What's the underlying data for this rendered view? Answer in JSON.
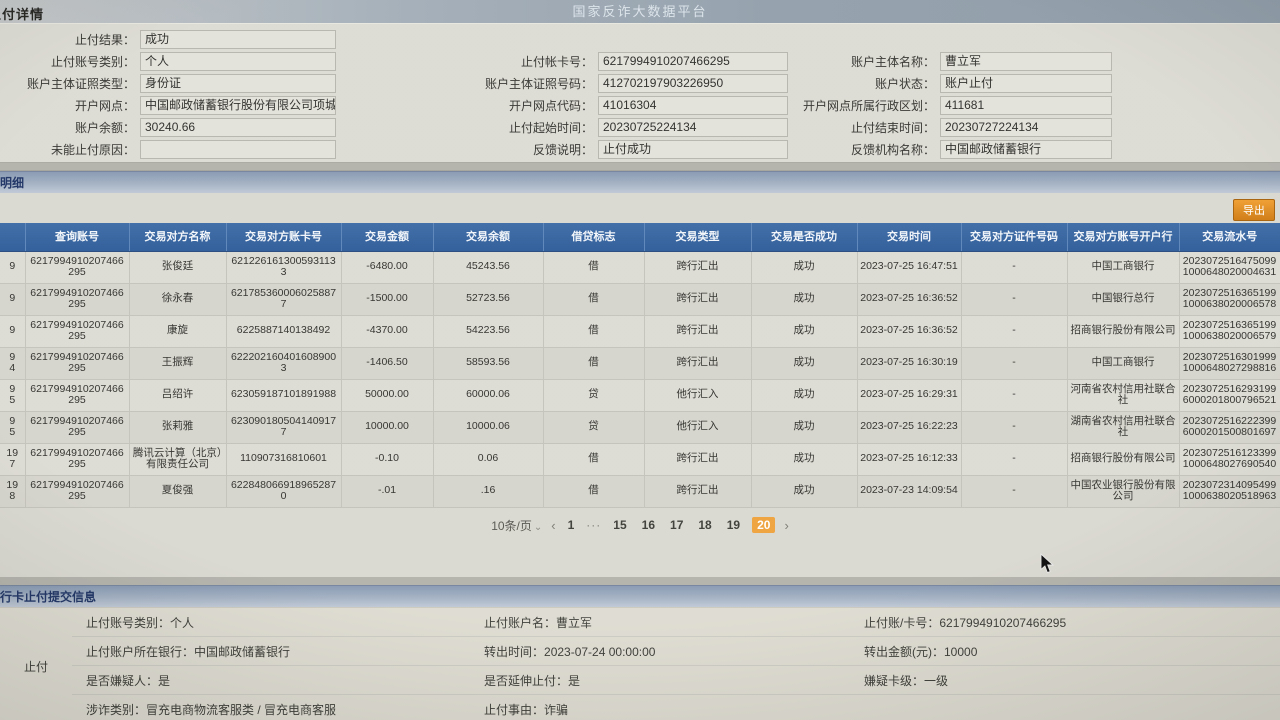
{
  "topbar": {
    "platform_title": "国家反诈大数据平台",
    "page_title": "止付详情"
  },
  "stop_detail": {
    "rows": [
      [
        {
          "label": "止付结果：",
          "value": "成功"
        }
      ],
      [
        {
          "label": "止付账号类别：",
          "value": "个人"
        },
        {
          "label": "止付帐卡号：",
          "value": "6217994910207466295"
        },
        {
          "label": "账户主体名称：",
          "value": "曹立军"
        }
      ],
      [
        {
          "label": "账户主体证照类型：",
          "value": "身份证"
        },
        {
          "label": "账户主体证照号码：",
          "value": "412702197903226950"
        },
        {
          "label": "账户状态：",
          "value": "账户止付"
        }
      ],
      [
        {
          "label": "开户网点：",
          "value": "中国邮政储蓄银行股份有限公司项城市高寺..."
        },
        {
          "label": "开户网点代码：",
          "value": "41016304"
        },
        {
          "label": "开户网点所属行政区划：",
          "value": "411681"
        }
      ],
      [
        {
          "label": "账户余额：",
          "value": "30240.66"
        },
        {
          "label": "止付起始时间：",
          "value": "20230725224134"
        },
        {
          "label": "止付结束时间：",
          "value": "20230727224134"
        }
      ],
      [
        {
          "label": "未能止付原因：",
          "value": ""
        },
        {
          "label": "反馈说明：",
          "value": "止付成功"
        },
        {
          "label": "反馈机构名称：",
          "value": "中国邮政储蓄银行"
        }
      ]
    ]
  },
  "transactions": {
    "section_title": "交易明细",
    "export_label": "导出",
    "headers": [
      "",
      "查询账号",
      "交易对方名称",
      "交易对方账卡号",
      "交易金额",
      "交易余额",
      "借贷标志",
      "交易类型",
      "交易是否成功",
      "交易时间",
      "交易对方证件号码",
      "交易对方账号开户行",
      "交易流水号"
    ],
    "rows": [
      {
        "idx": "9",
        "account": "6217994910207466295",
        "counterparty": "张俊廷",
        "card": "6212261613005931133",
        "amount": "-6480.00",
        "balance": "45243.56",
        "flag": "借",
        "type": "跨行汇出",
        "success": "成功",
        "time": "2023-07-25 16:47:51",
        "id_no": "-",
        "bank": "中国工商银行",
        "serial": "20230725164750991000648020004631"
      },
      {
        "idx": "9",
        "account": "6217994910207466295",
        "counterparty": "徐永春",
        "card": "6217853600060258877",
        "amount": "-1500.00",
        "balance": "52723.56",
        "flag": "借",
        "type": "跨行汇出",
        "success": "成功",
        "time": "2023-07-25 16:36:52",
        "id_no": "-",
        "bank": "中国银行总行",
        "serial": "20230725163651991000638020006578"
      },
      {
        "idx": "9",
        "account": "6217994910207466295",
        "counterparty": "康旋",
        "card": "6225887140138492",
        "amount": "-4370.00",
        "balance": "54223.56",
        "flag": "借",
        "type": "跨行汇出",
        "success": "成功",
        "time": "2023-07-25 16:36:52",
        "id_no": "-",
        "bank": "招商银行股份有限公司",
        "serial": "20230725163651991000638020006579"
      },
      {
        "idx": "9\n4",
        "account": "6217994910207466295",
        "counterparty": "王振辉",
        "card": "6222021604016089003",
        "amount": "-1406.50",
        "balance": "58593.56",
        "flag": "借",
        "type": "跨行汇出",
        "success": "成功",
        "time": "2023-07-25 16:30:19",
        "id_no": "-",
        "bank": "中国工商银行",
        "serial": "20230725163019991000648027298816"
      },
      {
        "idx": "9\n5",
        "account": "6217994910207466295",
        "counterparty": "吕绍许",
        "card": "623059187101891988",
        "amount": "50000.00",
        "balance": "60000.06",
        "flag": "贷",
        "type": "他行汇入",
        "success": "成功",
        "time": "2023-07-25 16:29:31",
        "id_no": "-",
        "bank": "河南省农村信用社联合社",
        "serial": "20230725162931996000201800796521"
      },
      {
        "idx": "9\n5",
        "account": "6217994910207466295",
        "counterparty": "张莉雅",
        "card": "6230901805041409177",
        "amount": "10000.00",
        "balance": "10000.06",
        "flag": "贷",
        "type": "他行汇入",
        "success": "成功",
        "time": "2023-07-25 16:22:23",
        "id_no": "-",
        "bank": "湖南省农村信用社联合社",
        "serial": "20230725162223996000201500801697"
      },
      {
        "idx": "19\n7",
        "account": "6217994910207466295",
        "counterparty": "腾讯云计算（北京）有限责任公司",
        "card": "110907316810601",
        "amount": "-0.10",
        "balance": "0.06",
        "flag": "借",
        "type": "跨行汇出",
        "success": "成功",
        "time": "2023-07-25 16:12:33",
        "id_no": "-",
        "bank": "招商银行股份有限公司",
        "serial": "20230725161233991000648027690540"
      },
      {
        "idx": "19\n8",
        "account": "6217994910207466295",
        "counterparty": "夏俊强",
        "card": "6228480669189652870",
        "amount": "-.01",
        "balance": ".16",
        "flag": "借",
        "type": "跨行汇出",
        "success": "成功",
        "time": "2023-07-23 14:09:54",
        "id_no": "-",
        "bank": "中国农业银行股份有限公司",
        "serial": "20230723140954991000638020518963"
      }
    ]
  },
  "pagination": {
    "page_size_label": "10条/页",
    "caret_icon": "⌄",
    "prev_icon": "‹",
    "next_icon": "›",
    "pages": [
      "1",
      "···",
      "15",
      "16",
      "17",
      "18",
      "19",
      "20"
    ],
    "active_page": "20"
  },
  "submission": {
    "section_title": "银行卡止付提交信息",
    "group_label": "止付",
    "rows": [
      [
        {
          "label": "止付账号类别：",
          "value": "个人"
        },
        {
          "label": "止付账户名：",
          "value": "曹立军"
        },
        {
          "label": "止付账/卡号：",
          "value": "6217994910207466295"
        }
      ],
      [
        {
          "label": "止付账户所在银行：",
          "value": "中国邮政储蓄银行"
        },
        {
          "label": "转出时间：",
          "value": "2023-07-24 00:00:00"
        },
        {
          "label": "转出金额(元)：",
          "value": "10000"
        }
      ],
      [
        {
          "label": "是否嫌疑人：",
          "value": "是"
        },
        {
          "label": "是否延伸止付：",
          "value": "是"
        },
        {
          "label": "嫌疑卡级：",
          "value": "一级"
        }
      ],
      [
        {
          "label": "涉诈类别：",
          "value": "冒充电商物流客服类 / 冒充电商客服"
        },
        {
          "label": "止付事由：",
          "value": "诈骗"
        }
      ]
    ]
  }
}
